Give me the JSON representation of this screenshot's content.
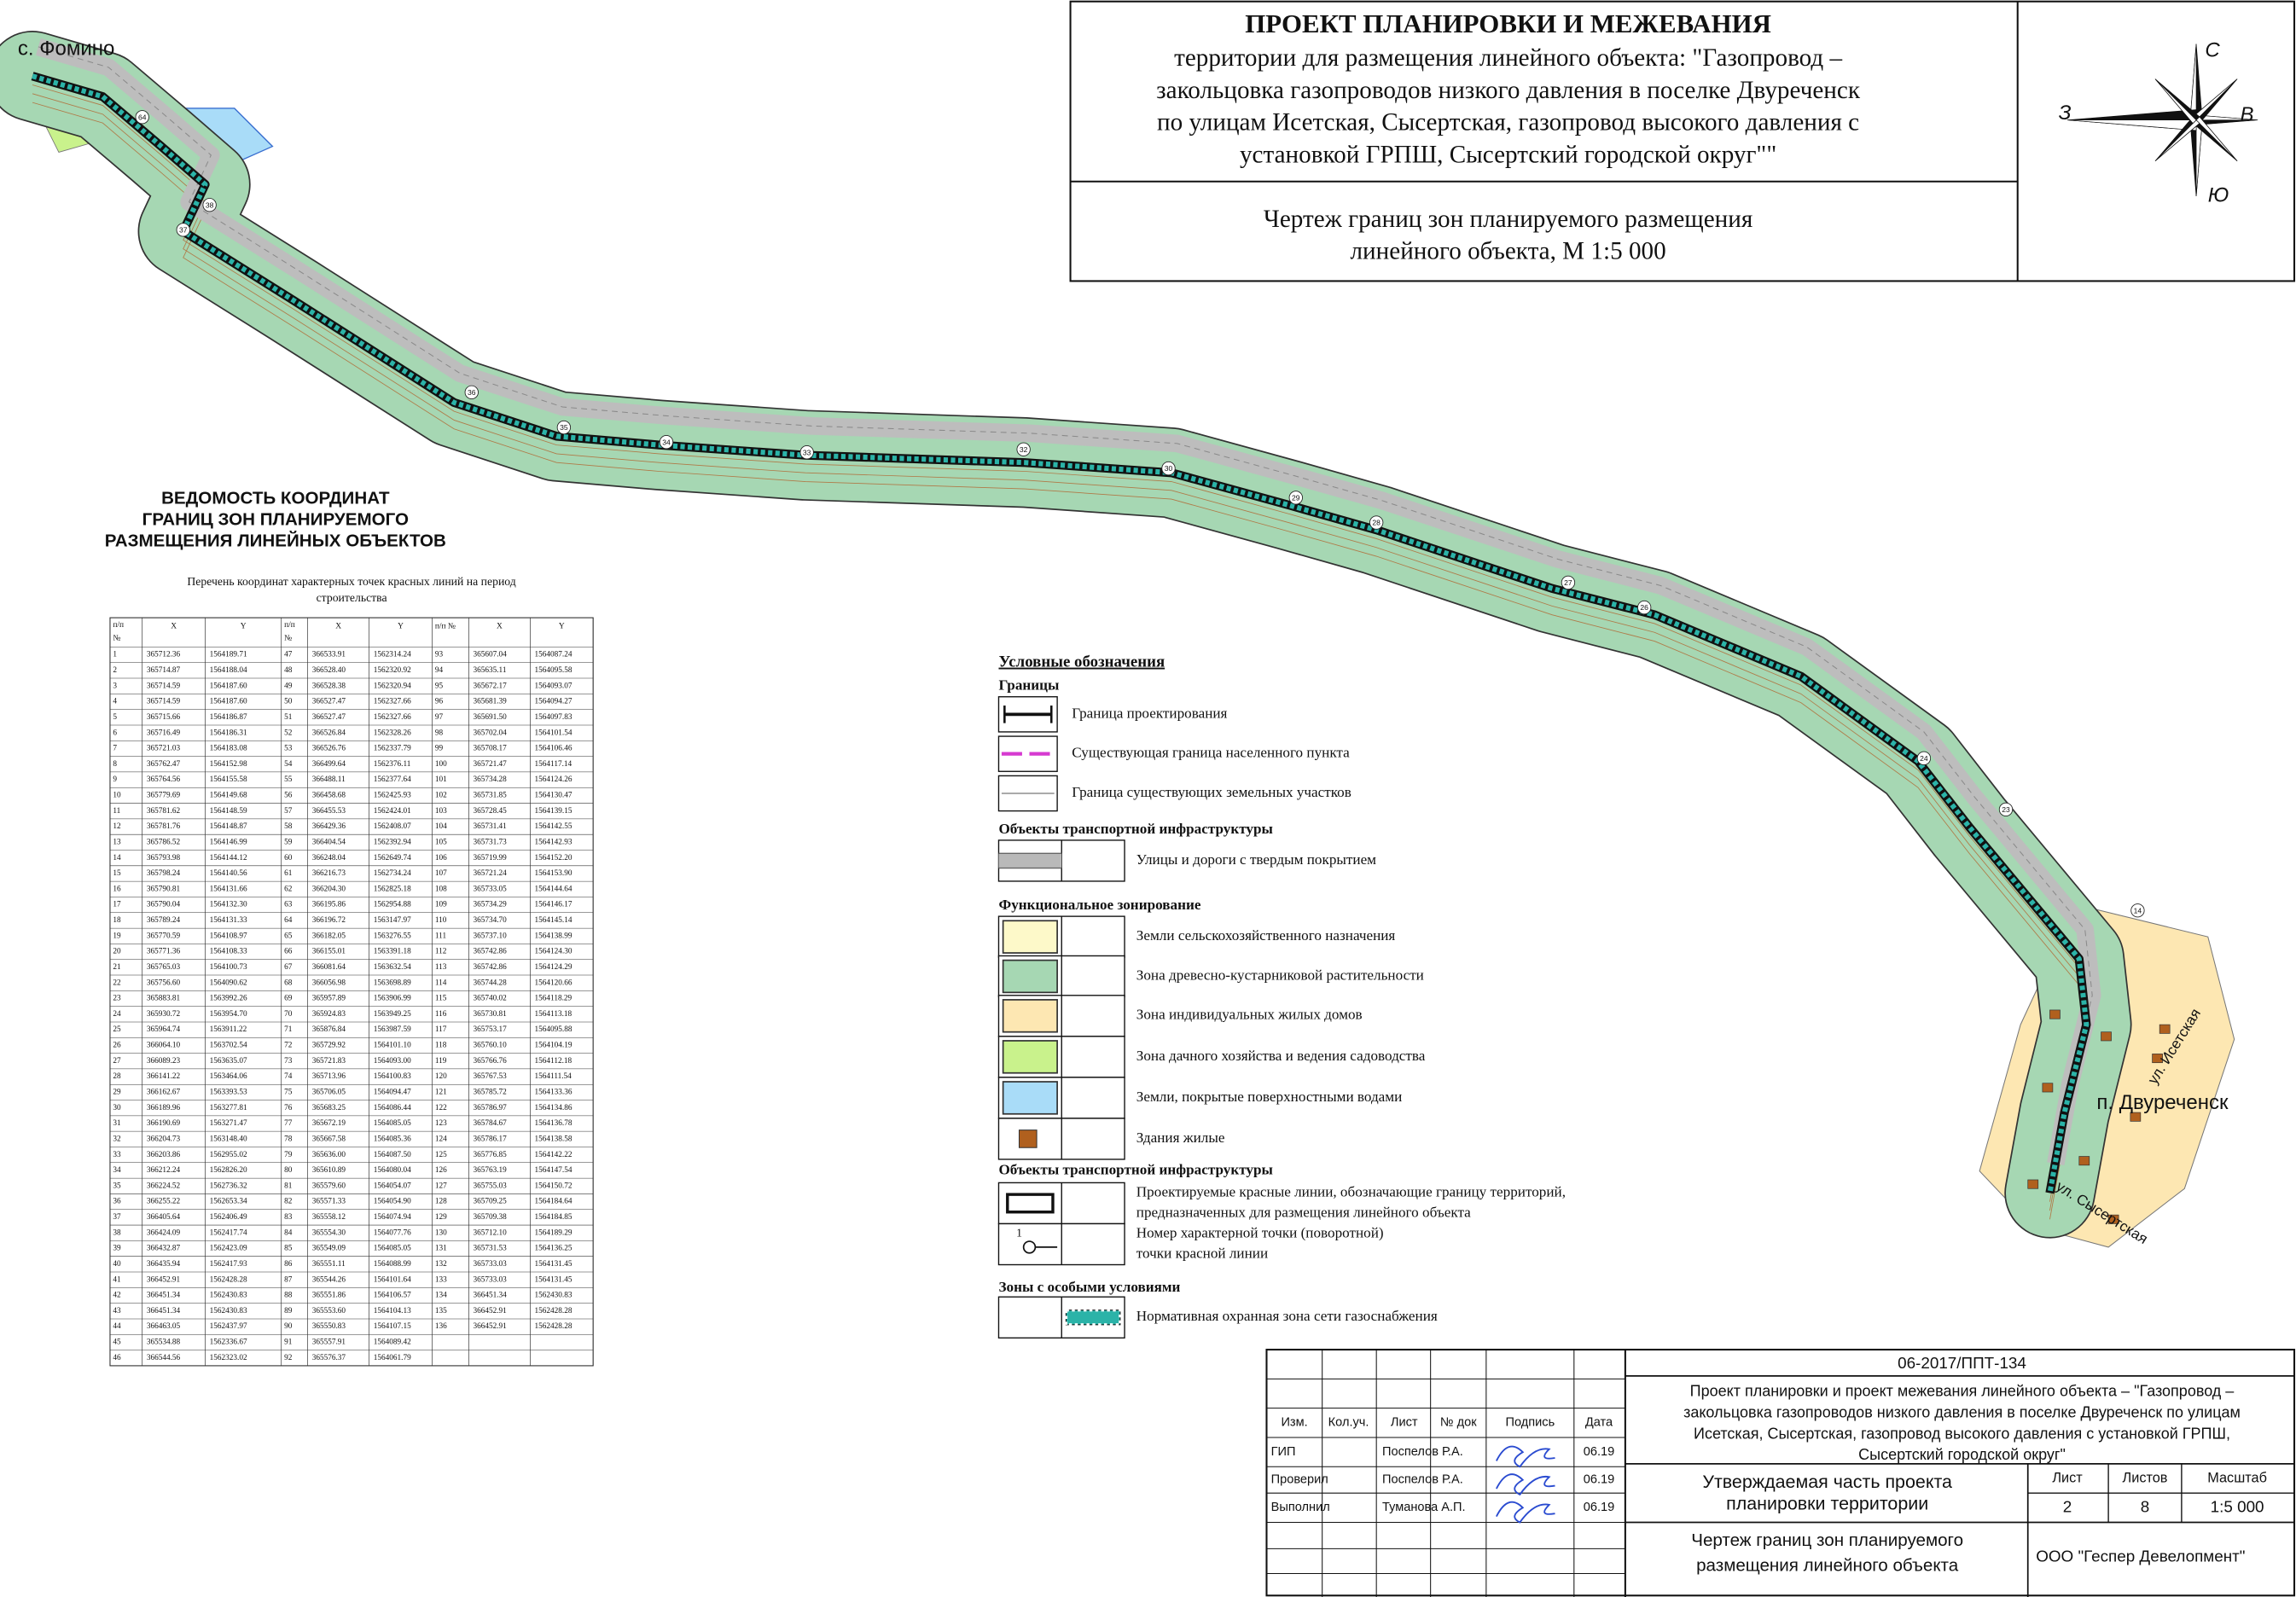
{
  "title_block": {
    "title": "ПРОЕКТ ПЛАНИРОВКИ И МЕЖЕВАНИЯ",
    "subtitle_lines": [
      "территории для размещения линейного объекта: \"Газопровод –",
      "закольцовка газопроводов низкого давления в поселке Двуреченск",
      "по улицам Исетская, Сысертская, газопровод высокого давления с",
      "установкой ГРПШ, Сысертский городской округ\"\""
    ],
    "drawing_name_lines": [
      "Чертеж границ зон планируемого размещения",
      "линейного объекта, М 1:5 000"
    ]
  },
  "compass": {
    "north": "С",
    "west": "З",
    "east": "В",
    "south": "Ю"
  },
  "map": {
    "labels": {
      "village": "с. Фомино",
      "settlement": "п. Двуреченск",
      "street_1": "ул. Исетская",
      "street_2": "ул. Сысертская"
    },
    "point_numbers": [
      "64",
      "38",
      "37",
      "36",
      "35",
      "34",
      "33",
      "32",
      "30",
      "29",
      "28",
      "27",
      "26",
      "24",
      "23",
      "14"
    ]
  },
  "coordinates": {
    "title_lines": [
      "ВЕДОМОСТЬ КООРДИНАТ",
      "ГРАНИЦ ЗОН ПЛАНИРУЕМОГО",
      "РАЗМЕЩЕНИЯ ЛИНЕЙНЫХ ОБЪЕКТОВ"
    ],
    "caption_lines": [
      "Перечень координат характерных точек красных линий на период",
      "строительства"
    ],
    "header": [
      [
        "п/п",
        "№"
      ],
      [
        "X"
      ],
      [
        "Y"
      ],
      [
        "п/п",
        "№"
      ],
      [
        "X"
      ],
      [
        "Y"
      ],
      [
        "п/п №"
      ],
      [
        "X"
      ],
      [
        "Y"
      ]
    ],
    "rows": [
      [
        "1",
        "365712.36",
        "1564189.71",
        "47",
        "366533.91",
        "1562314.24",
        "93",
        "365607.04",
        "1564087.24"
      ],
      [
        "2",
        "365714.87",
        "1564188.04",
        "48",
        "366528.40",
        "1562320.92",
        "94",
        "365635.11",
        "1564095.58"
      ],
      [
        "3",
        "365714.59",
        "1564187.60",
        "49",
        "366528.38",
        "1562320.94",
        "95",
        "365672.17",
        "1564093.07"
      ],
      [
        "4",
        "365714.59",
        "1564187.60",
        "50",
        "366527.47",
        "1562327.66",
        "96",
        "365681.39",
        "1564094.27"
      ],
      [
        "5",
        "365715.66",
        "1564186.87",
        "51",
        "366527.47",
        "1562327.66",
        "97",
        "365691.50",
        "1564097.83"
      ],
      [
        "6",
        "365716.49",
        "1564186.31",
        "52",
        "366526.84",
        "1562328.26",
        "98",
        "365702.04",
        "1564101.54"
      ],
      [
        "7",
        "365721.03",
        "1564183.08",
        "53",
        "366526.76",
        "1562337.79",
        "99",
        "365708.17",
        "1564106.46"
      ],
      [
        "8",
        "365762.47",
        "1564152.98",
        "54",
        "366499.64",
        "1562376.11",
        "100",
        "365721.47",
        "1564117.14"
      ],
      [
        "9",
        "365764.56",
        "1564155.58",
        "55",
        "366488.11",
        "1562377.64",
        "101",
        "365734.28",
        "1564124.26"
      ],
      [
        "10",
        "365779.69",
        "1564149.68",
        "56",
        "366458.68",
        "1562425.93",
        "102",
        "365731.85",
        "1564130.47"
      ],
      [
        "11",
        "365781.62",
        "1564148.59",
        "57",
        "366455.53",
        "1562424.01",
        "103",
        "365728.45",
        "1564139.15"
      ],
      [
        "12",
        "365781.76",
        "1564148.87",
        "58",
        "366429.36",
        "1562408.07",
        "104",
        "365731.41",
        "1564142.55"
      ],
      [
        "13",
        "365786.52",
        "1564146.99",
        "59",
        "366404.54",
        "1562392.94",
        "105",
        "365731.73",
        "1564142.93"
      ],
      [
        "14",
        "365793.98",
        "1564144.12",
        "60",
        "366248.04",
        "1562649.74",
        "106",
        "365719.99",
        "1564152.20"
      ],
      [
        "15",
        "365798.24",
        "1564140.56",
        "61",
        "366216.73",
        "1562734.24",
        "107",
        "365721.24",
        "1564153.90"
      ],
      [
        "16",
        "365790.81",
        "1564131.66",
        "62",
        "366204.30",
        "1562825.18",
        "108",
        "365733.05",
        "1564144.64"
      ],
      [
        "17",
        "365790.04",
        "1564132.30",
        "63",
        "366195.86",
        "1562954.88",
        "109",
        "365734.29",
        "1564146.17"
      ],
      [
        "18",
        "365789.24",
        "1564131.33",
        "64",
        "366196.72",
        "1563147.97",
        "110",
        "365734.70",
        "1564145.14"
      ],
      [
        "19",
        "365770.59",
        "1564108.97",
        "65",
        "366182.05",
        "1563276.55",
        "111",
        "365737.10",
        "1564138.99"
      ],
      [
        "20",
        "365771.36",
        "1564108.33",
        "66",
        "366155.01",
        "1563391.18",
        "112",
        "365742.86",
        "1564124.30"
      ],
      [
        "21",
        "365765.03",
        "1564100.73",
        "67",
        "366081.64",
        "1563632.54",
        "113",
        "365742.86",
        "1564124.29"
      ],
      [
        "22",
        "365756.60",
        "1564090.62",
        "68",
        "366056.98",
        "1563698.89",
        "114",
        "365744.28",
        "1564120.66"
      ],
      [
        "23",
        "365883.81",
        "1563992.26",
        "69",
        "365957.89",
        "1563906.99",
        "115",
        "365740.02",
        "1564118.29"
      ],
      [
        "24",
        "365930.72",
        "1563954.70",
        "70",
        "365924.83",
        "1563949.25",
        "116",
        "365730.81",
        "1564113.18"
      ],
      [
        "25",
        "365964.74",
        "1563911.22",
        "71",
        "365876.84",
        "1563987.59",
        "117",
        "365753.17",
        "1564095.88"
      ],
      [
        "26",
        "366064.10",
        "1563702.54",
        "72",
        "365729.92",
        "1564101.10",
        "118",
        "365760.10",
        "1564104.19"
      ],
      [
        "27",
        "366089.23",
        "1563635.07",
        "73",
        "365721.83",
        "1564093.00",
        "119",
        "365766.76",
        "1564112.18"
      ],
      [
        "28",
        "366141.22",
        "1563464.06",
        "74",
        "365713.96",
        "1564100.83",
        "120",
        "365767.53",
        "1564111.54"
      ],
      [
        "29",
        "366162.67",
        "1563393.53",
        "75",
        "365706.05",
        "1564094.47",
        "121",
        "365785.72",
        "1564133.36"
      ],
      [
        "30",
        "366189.96",
        "1563277.81",
        "76",
        "365683.25",
        "1564086.44",
        "122",
        "365786.97",
        "1564134.86"
      ],
      [
        "31",
        "366190.69",
        "1563271.47",
        "77",
        "365672.19",
        "1564085.05",
        "123",
        "365784.67",
        "1564136.78"
      ],
      [
        "32",
        "366204.73",
        "1563148.40",
        "78",
        "365667.58",
        "1564085.36",
        "124",
        "365786.17",
        "1564138.58"
      ],
      [
        "33",
        "366203.86",
        "1562955.02",
        "79",
        "365636.00",
        "1564087.50",
        "125",
        "365776.85",
        "1564142.22"
      ],
      [
        "34",
        "366212.24",
        "1562826.20",
        "80",
        "365610.89",
        "1564080.04",
        "126",
        "365763.19",
        "1564147.54"
      ],
      [
        "35",
        "366224.52",
        "1562736.32",
        "81",
        "365579.60",
        "1564054.07",
        "127",
        "365755.03",
        "1564150.72"
      ],
      [
        "36",
        "366255.22",
        "1562653.34",
        "82",
        "365571.33",
        "1564054.90",
        "128",
        "365709.25",
        "1564184.64"
      ],
      [
        "37",
        "366405.64",
        "1562406.49",
        "83",
        "365558.12",
        "1564074.94",
        "129",
        "365709.38",
        "1564184.85"
      ],
      [
        "38",
        "366424.09",
        "1562417.74",
        "84",
        "365554.30",
        "1564077.76",
        "130",
        "365712.10",
        "1564189.29"
      ],
      [
        "39",
        "366432.87",
        "1562423.09",
        "85",
        "365549.09",
        "1564085.05",
        "131",
        "365731.53",
        "1564136.25"
      ],
      [
        "40",
        "366435.94",
        "1562417.93",
        "86",
        "365551.11",
        "1564088.99",
        "132",
        "365733.03",
        "1564131.45"
      ],
      [
        "41",
        "366452.91",
        "1562428.28",
        "87",
        "365544.26",
        "1564101.64",
        "133",
        "365733.03",
        "1564131.45"
      ],
      [
        "42",
        "366451.34",
        "1562430.83",
        "88",
        "365551.86",
        "1564106.57",
        "134",
        "366451.34",
        "1562430.83"
      ],
      [
        "43",
        "366451.34",
        "1562430.83",
        "89",
        "365553.60",
        "1564104.13",
        "135",
        "366452.91",
        "1562428.28"
      ],
      [
        "44",
        "366463.05",
        "1562437.97",
        "90",
        "365550.83",
        "1564107.15",
        "136",
        "366452.91",
        "1562428.28"
      ],
      [
        "45",
        "365534.88",
        "1562336.67",
        "91",
        "365557.91",
        "1564089.42"
      ],
      [
        "46",
        "366544.56",
        "1562323.02",
        "92",
        "365576.37",
        "1564061.79"
      ]
    ]
  },
  "legend": {
    "title": "Условные обозначения",
    "sections": [
      {
        "heading": "Границы",
        "items": [
          {
            "label_lines": [
              "Граница проектирования"
            ]
          },
          {
            "label_lines": [
              "Существующая граница населенного пункта"
            ],
            "color": "#d63ad0"
          },
          {
            "label_lines": [
              "Граница существующих земельных участков"
            ]
          }
        ]
      },
      {
        "heading": "Объекты транспортной инфраструктуры",
        "items": [
          {
            "label_lines": [
              "Улицы и дороги  с твердым покрытием"
            ],
            "color": "#b9b9b9"
          }
        ]
      },
      {
        "heading": "Функциональное зонирование",
        "items": [
          {
            "label_lines": [
              "Земли сельскохозяйственного назначения"
            ],
            "color": "#fdf9c9"
          },
          {
            "label_lines": [
              "Зона древесно-кустарниковой растительности"
            ],
            "color": "#a6d7b3"
          },
          {
            "label_lines": [
              "Зона индивидуальных жилых домов"
            ],
            "color": "#fde7b2"
          },
          {
            "label_lines": [
              "Зона дачного хозяйства и ведения садоводства"
            ],
            "color": "#c9f28c"
          },
          {
            "label_lines": [
              "Земли, покрытые поверхностными водами"
            ],
            "color": "#a9dcf8"
          },
          {
            "label_lines": [
              "Здания жилые"
            ],
            "color": "#b0601e"
          }
        ]
      },
      {
        "heading": "Объекты транспортной инфраструктуры",
        "items": [
          {
            "label_lines": [
              "Проектируемые красные линии, обозначающие границу территорий,",
              "предназначенных для размещения линейного объекта"
            ]
          },
          {
            "label_lines": [
              "Номер характерной точки (поворотной)",
              "точки красной линии"
            ],
            "symbol_label": "1"
          }
        ]
      },
      {
        "heading": "Зоны с особыми условиями",
        "items": [
          {
            "label_lines": [
              "Нормативная охранная зона сети газоснабжения"
            ],
            "color": "#2bb3a8"
          }
        ]
      }
    ]
  },
  "stamp": {
    "code": "06-2017/ППТ-134",
    "project_lines": [
      "Проект планировки и проект межевания линейного объекта – \"Газопровод –",
      "закольцовка газопроводов низкого давления в поселке Двуреченск по улицам",
      "Исетская, Сысертская, газопровод высокого давления с установкой ГРПШ,",
      "Сысертский городской округ\""
    ],
    "header": [
      "Изм.",
      "Кол.уч.",
      "Лист",
      "№ док",
      "Подпись",
      "Дата"
    ],
    "people": [
      [
        "ГИП",
        "Поспелов Р.А.",
        "06.19"
      ],
      [
        "Проверил",
        "Поспелов Р.А.",
        "06.19"
      ],
      [
        "Выполнил",
        "Туманова А.П.",
        "06.19"
      ]
    ],
    "stage_lines": [
      "Утверждаемая часть проекта",
      "планировки территории"
    ],
    "sheet_header": [
      "Лист",
      "Листов",
      "Масштаб"
    ],
    "sheet_values": [
      "2",
      "8",
      "1:5 000"
    ],
    "drawing_lines": [
      "Чертеж границ зон планируемого",
      "размещения линейного объекта"
    ],
    "company": "ООО \"Геспер Девелопмент\""
  }
}
